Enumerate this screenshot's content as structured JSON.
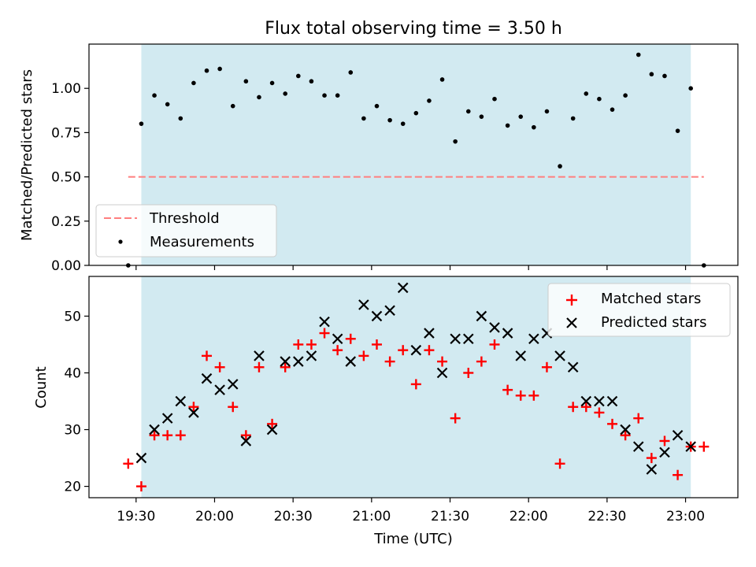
{
  "figure": {
    "title": "Flux total observing time = 3.50 h",
    "colors": {
      "night_band": "#add8e6",
      "threshold": "#ff7f7f",
      "measurement": "#000000",
      "matched": "#ff0000",
      "predicted": "#000000"
    }
  },
  "chart_data": [
    {
      "type": "scatter",
      "title": "Flux total observing time = 3.50 h",
      "xlabel": "",
      "ylabel": "Matched/Predicted stars",
      "xlim": [
        "19:12",
        "23:20"
      ],
      "ylim": [
        0,
        1.25
      ],
      "yticks": [
        "0.00",
        "0.25",
        "0.50",
        "0.75",
        "1.00"
      ],
      "shaded_region": {
        "x": [
          "19:32",
          "23:02"
        ]
      },
      "legend": {
        "placement": "lower-left",
        "entries": [
          "Threshold",
          "Measurements"
        ]
      },
      "series": [
        {
          "name": "Threshold",
          "kind": "dashed-line",
          "x": [
            "19:27",
            "23:07"
          ],
          "y": [
            0.5,
            0.5
          ]
        },
        {
          "name": "Measurements",
          "kind": "dots",
          "x": [
            "19:27",
            "19:32",
            "19:37",
            "19:42",
            "19:47",
            "19:52",
            "19:57",
            "20:02",
            "20:07",
            "20:12",
            "20:17",
            "20:22",
            "20:27",
            "20:32",
            "20:37",
            "20:42",
            "20:47",
            "20:52",
            "20:57",
            "21:02",
            "21:07",
            "21:12",
            "21:17",
            "21:22",
            "21:27",
            "21:32",
            "21:37",
            "21:42",
            "21:47",
            "21:52",
            "21:57",
            "22:02",
            "22:07",
            "22:12",
            "22:17",
            "22:22",
            "22:27",
            "22:32",
            "22:37",
            "22:42",
            "22:47",
            "22:52",
            "22:57",
            "23:02",
            "23:07"
          ],
          "y": [
            0.0,
            0.8,
            0.96,
            0.91,
            0.83,
            1.03,
            1.1,
            1.11,
            0.9,
            1.04,
            0.95,
            1.03,
            0.97,
            1.07,
            1.04,
            0.96,
            0.96,
            1.09,
            0.83,
            0.9,
            0.82,
            0.8,
            0.86,
            0.93,
            1.05,
            0.7,
            0.87,
            0.84,
            0.94,
            0.79,
            0.84,
            0.78,
            0.87,
            0.56,
            0.83,
            0.97,
            0.94,
            0.88,
            0.96,
            1.19,
            1.08,
            1.07,
            0.76,
            1.0,
            0.0
          ]
        }
      ]
    },
    {
      "type": "scatter",
      "title": "",
      "xlabel": "Time (UTC)",
      "ylabel": "Count",
      "xlim": [
        "19:12",
        "23:20"
      ],
      "ylim": [
        18,
        57
      ],
      "xticks": [
        "19:30",
        "20:00",
        "20:30",
        "21:00",
        "21:30",
        "22:00",
        "22:30",
        "23:00"
      ],
      "yticks": [
        "20",
        "30",
        "40",
        "50"
      ],
      "shaded_region": {
        "x": [
          "19:32",
          "23:02"
        ]
      },
      "legend": {
        "placement": "top-right",
        "entries": [
          "Matched stars",
          "Predicted stars"
        ]
      },
      "series": [
        {
          "name": "Matched stars",
          "marker": "+",
          "x": [
            "19:27",
            "19:32",
            "19:37",
            "19:42",
            "19:47",
            "19:52",
            "19:57",
            "20:02",
            "20:07",
            "20:12",
            "20:17",
            "20:22",
            "20:27",
            "20:32",
            "20:37",
            "20:42",
            "20:47",
            "20:52",
            "20:57",
            "21:02",
            "21:07",
            "21:12",
            "21:17",
            "21:22",
            "21:27",
            "21:32",
            "21:37",
            "21:42",
            "21:47",
            "21:52",
            "21:57",
            "22:02",
            "22:07",
            "22:12",
            "22:17",
            "22:22",
            "22:27",
            "22:32",
            "22:37",
            "22:42",
            "22:47",
            "22:52",
            "22:57",
            "23:02",
            "23:07"
          ],
          "y": [
            24,
            20,
            29,
            29,
            29,
            34,
            43,
            41,
            34,
            29,
            41,
            31,
            41,
            45,
            45,
            47,
            44,
            46,
            43,
            45,
            42,
            44,
            38,
            44,
            42,
            32,
            40,
            42,
            45,
            37,
            36,
            36,
            41,
            24,
            34,
            34,
            33,
            31,
            29,
            32,
            25,
            28,
            22,
            27,
            27
          ]
        },
        {
          "name": "Predicted stars",
          "marker": "x",
          "x": [
            "19:32",
            "19:37",
            "19:42",
            "19:47",
            "19:52",
            "19:57",
            "20:02",
            "20:07",
            "20:12",
            "20:17",
            "20:22",
            "20:27",
            "20:32",
            "20:37",
            "20:42",
            "20:47",
            "20:52",
            "20:57",
            "21:02",
            "21:07",
            "21:12",
            "21:17",
            "21:22",
            "21:27",
            "21:32",
            "21:37",
            "21:42",
            "21:47",
            "21:52",
            "21:57",
            "22:02",
            "22:07",
            "22:12",
            "22:17",
            "22:22",
            "22:27",
            "22:32",
            "22:37",
            "22:42",
            "22:47",
            "22:52",
            "22:57",
            "23:02"
          ],
          "y": [
            25,
            30,
            32,
            35,
            33,
            39,
            37,
            38,
            28,
            43,
            30,
            42,
            42,
            43,
            49,
            46,
            42,
            52,
            50,
            51,
            55,
            44,
            47,
            40,
            46,
            46,
            50,
            48,
            47,
            43,
            46,
            47,
            43,
            41,
            35,
            35,
            35,
            30,
            27,
            23,
            26,
            29,
            27
          ]
        }
      ]
    }
  ]
}
